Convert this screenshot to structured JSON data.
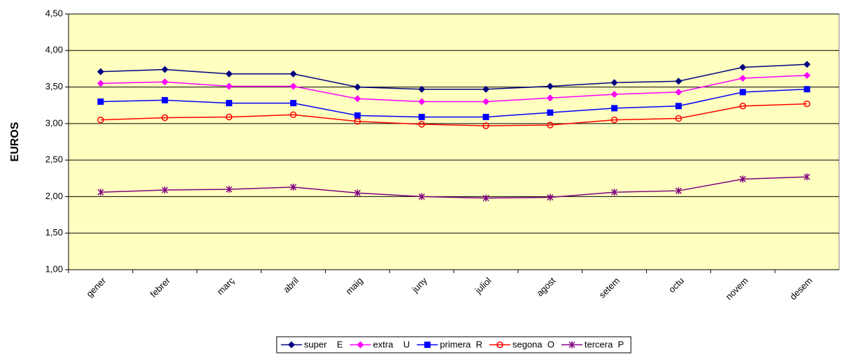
{
  "chart_data": {
    "type": "line",
    "y_label": "EUROS",
    "categories": [
      "gener",
      "febrer",
      "març",
      "abril",
      "maig",
      "juny",
      "juliol",
      "agost",
      "setem",
      "octu",
      "novem",
      "desem"
    ],
    "ylim": [
      1.0,
      4.5
    ],
    "yticks": [
      {
        "value": 1.0,
        "label": "1,00"
      },
      {
        "value": 1.5,
        "label": "1,50"
      },
      {
        "value": 2.0,
        "label": "2,00"
      },
      {
        "value": 2.5,
        "label": "2,50"
      },
      {
        "value": 3.0,
        "label": "3,00"
      },
      {
        "value": 3.5,
        "label": "3,50"
      },
      {
        "value": 4.0,
        "label": "4,00"
      },
      {
        "value": 4.5,
        "label": "4,50"
      }
    ],
    "grid": true,
    "legend": "bottom",
    "series": [
      {
        "name": "super    E",
        "color": "#000080",
        "marker": "diamond",
        "values": [
          3.71,
          3.74,
          3.68,
          3.68,
          3.5,
          3.47,
          3.47,
          3.51,
          3.56,
          3.58,
          3.77,
          3.81
        ]
      },
      {
        "name": "extra    U",
        "color": "#ff00ff",
        "marker": "diamond",
        "values": [
          3.55,
          3.57,
          3.51,
          3.51,
          3.34,
          3.3,
          3.3,
          3.35,
          3.4,
          3.43,
          3.62,
          3.66
        ]
      },
      {
        "name": "primera  R",
        "color": "#0000ff",
        "marker": "square",
        "values": [
          3.3,
          3.32,
          3.28,
          3.28,
          3.11,
          3.09,
          3.09,
          3.15,
          3.21,
          3.24,
          3.43,
          3.47
        ]
      },
      {
        "name": "segona  O",
        "color": "#ff0000",
        "marker": "circle",
        "values": [
          3.05,
          3.08,
          3.09,
          3.12,
          3.03,
          2.99,
          2.97,
          2.98,
          3.05,
          3.07,
          3.24,
          3.27
        ]
      },
      {
        "name": "tercera  P",
        "color": "#800080",
        "marker": "star",
        "values": [
          2.06,
          2.09,
          2.1,
          2.13,
          2.05,
          2.0,
          1.98,
          1.99,
          2.06,
          2.08,
          2.24,
          2.27
        ]
      }
    ]
  }
}
